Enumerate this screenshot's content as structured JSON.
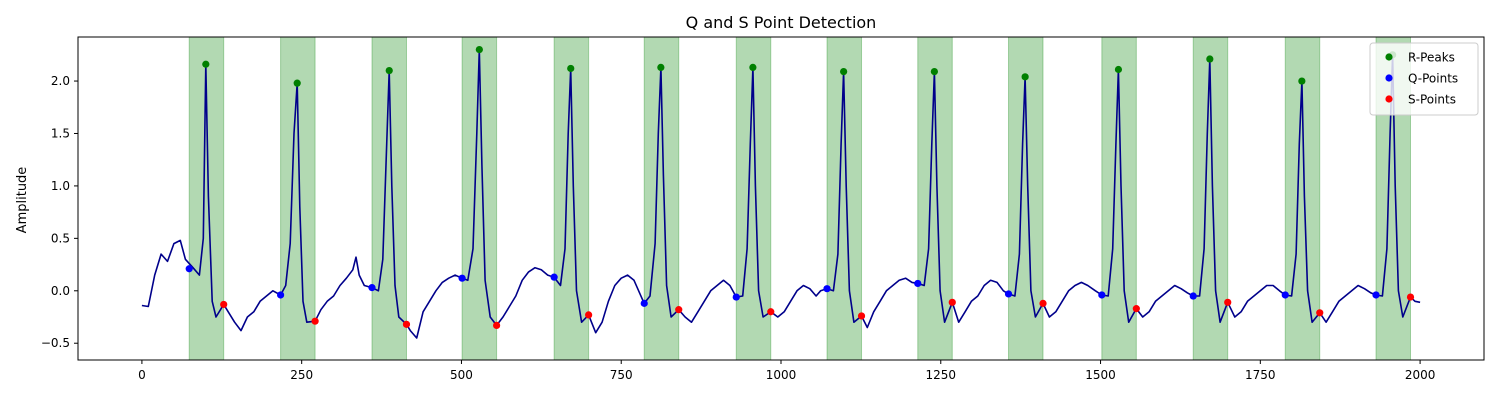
{
  "chart_data": {
    "type": "line",
    "title": "Q and S Point Detection",
    "xlabel": "",
    "ylabel": "Amplitude",
    "xlim": [
      -100,
      2100
    ],
    "ylim": [
      -0.66,
      2.42
    ],
    "x_ticks": [
      0,
      250,
      500,
      750,
      1000,
      1250,
      1500,
      1750,
      2000
    ],
    "y_ticks": [
      -0.5,
      0.0,
      0.5,
      1.0,
      1.5,
      2.0
    ],
    "x_tick_labels": [
      "0",
      "250",
      "500",
      "750",
      "1000",
      "1250",
      "1500",
      "1750",
      "2000"
    ],
    "y_tick_labels": [
      "−0.5",
      "0.0",
      "0.5",
      "1.0",
      "1.5",
      "2.0"
    ],
    "grid": false,
    "legend_position": "top-right",
    "colors": {
      "signal": "#00008b",
      "r_peaks": "#008000",
      "q_points": "#0000ff",
      "s_points": "#ff0000",
      "qrs_region": "#008000"
    },
    "legend": [
      {
        "label": "R-Peaks",
        "color": "#008000"
      },
      {
        "label": "Q-Points",
        "color": "#0000ff"
      },
      {
        "label": "S-Points",
        "color": "#ff0000"
      }
    ],
    "qrs_regions": [
      [
        74,
        128
      ],
      [
        217,
        271
      ],
      [
        360,
        414
      ],
      [
        501,
        555
      ],
      [
        645,
        699
      ],
      [
        786,
        840
      ],
      [
        930,
        984
      ],
      [
        1072,
        1126
      ],
      [
        1214,
        1268
      ],
      [
        1356,
        1410
      ],
      [
        1502,
        1556
      ],
      [
        1645,
        1699
      ],
      [
        1789,
        1843
      ],
      [
        1931,
        1985
      ]
    ],
    "series": [
      {
        "name": "R-Peaks",
        "type": "scatter",
        "x": [
          100,
          243,
          387,
          528,
          671,
          812,
          956,
          1098,
          1240,
          1382,
          1528,
          1671,
          1815,
          1957
        ],
        "y": [
          2.16,
          1.98,
          2.1,
          2.3,
          2.12,
          2.13,
          2.13,
          2.09,
          2.09,
          2.04,
          2.11,
          2.21,
          2.0,
          2.25
        ]
      },
      {
        "name": "Q-Points",
        "type": "scatter",
        "x": [
          74,
          217,
          360,
          501,
          645,
          786,
          930,
          1072,
          1214,
          1356,
          1502,
          1645,
          1789,
          1931
        ],
        "y": [
          0.21,
          -0.04,
          0.03,
          0.12,
          0.13,
          -0.12,
          -0.06,
          0.02,
          0.07,
          -0.03,
          -0.04,
          -0.05,
          -0.04,
          -0.04
        ]
      },
      {
        "name": "S-Points",
        "type": "scatter",
        "x": [
          128,
          271,
          414,
          555,
          699,
          840,
          984,
          1126,
          1268,
          1410,
          1556,
          1699,
          1843,
          1985
        ],
        "y": [
          -0.13,
          -0.29,
          -0.32,
          -0.33,
          -0.23,
          -0.18,
          -0.2,
          -0.24,
          -0.11,
          -0.12,
          -0.17,
          -0.11,
          -0.21,
          -0.06
        ]
      }
    ],
    "signal_baseline": {
      "x": [
        0,
        10,
        20,
        30,
        40,
        50,
        60,
        68,
        80,
        90,
        96,
        100,
        104,
        110,
        116,
        128,
        135,
        145,
        155,
        165,
        175,
        185,
        195,
        205,
        217,
        225,
        232,
        238,
        243,
        247,
        252,
        258,
        271,
        280,
        290,
        300,
        310,
        320,
        330,
        335,
        340,
        348,
        360,
        370,
        377,
        383,
        387,
        391,
        396,
        402,
        414,
        420,
        430,
        440,
        450,
        460,
        470,
        480,
        490,
        501,
        510,
        518,
        524,
        528,
        532,
        537,
        545,
        555,
        565,
        575,
        585,
        595,
        605,
        615,
        625,
        635,
        645,
        655,
        662,
        667,
        671,
        675,
        680,
        688,
        699,
        710,
        720,
        730,
        740,
        750,
        760,
        770,
        786,
        795,
        803,
        808,
        812,
        816,
        821,
        828,
        840,
        850,
        860,
        870,
        880,
        890,
        900,
        910,
        920,
        930,
        940,
        947,
        952,
        956,
        960,
        965,
        972,
        984,
        995,
        1005,
        1015,
        1025,
        1035,
        1045,
        1055,
        1062,
        1072,
        1082,
        1089,
        1094,
        1098,
        1102,
        1107,
        1114,
        1126,
        1135,
        1145,
        1155,
        1165,
        1175,
        1185,
        1195,
        1205,
        1214,
        1224,
        1231,
        1236,
        1240,
        1244,
        1249,
        1256,
        1268,
        1278,
        1288,
        1298,
        1308,
        1318,
        1328,
        1338,
        1348,
        1356,
        1366,
        1373,
        1378,
        1382,
        1386,
        1391,
        1398,
        1410,
        1420,
        1430,
        1440,
        1450,
        1460,
        1470,
        1480,
        1492,
        1502,
        1512,
        1519,
        1524,
        1528,
        1532,
        1537,
        1544,
        1556,
        1566,
        1576,
        1586,
        1596,
        1606,
        1616,
        1626,
        1636,
        1645,
        1655,
        1662,
        1667,
        1671,
        1675,
        1680,
        1687,
        1699,
        1710,
        1720,
        1730,
        1740,
        1750,
        1760,
        1770,
        1780,
        1789,
        1799,
        1806,
        1811,
        1815,
        1819,
        1824,
        1831,
        1843,
        1853,
        1863,
        1873,
        1883,
        1893,
        1903,
        1913,
        1923,
        1931,
        1941,
        1948,
        1953,
        1957,
        1961,
        1966,
        1973,
        1985,
        1992,
        2000
      ],
      "y": [
        -0.14,
        -0.15,
        0.15,
        0.35,
        0.28,
        0.45,
        0.48,
        0.3,
        0.22,
        0.15,
        0.5,
        2.16,
        0.9,
        -0.1,
        -0.25,
        -0.13,
        -0.2,
        -0.3,
        -0.38,
        -0.25,
        -0.2,
        -0.1,
        -0.05,
        0.0,
        -0.04,
        0.05,
        0.45,
        1.5,
        1.98,
        0.8,
        -0.1,
        -0.3,
        -0.29,
        -0.18,
        -0.1,
        -0.05,
        0.05,
        0.12,
        0.2,
        0.32,
        0.15,
        0.05,
        0.03,
        0.0,
        0.3,
        1.4,
        2.1,
        1.0,
        0.05,
        -0.25,
        -0.32,
        -0.38,
        -0.45,
        -0.2,
        -0.1,
        0.0,
        0.08,
        0.12,
        0.15,
        0.12,
        0.1,
        0.4,
        1.5,
        2.3,
        1.2,
        0.1,
        -0.25,
        -0.33,
        -0.25,
        -0.15,
        -0.05,
        0.1,
        0.18,
        0.22,
        0.2,
        0.15,
        0.13,
        0.05,
        0.4,
        1.5,
        2.12,
        1.0,
        0.0,
        -0.3,
        -0.23,
        -0.4,
        -0.3,
        -0.1,
        0.05,
        0.12,
        0.15,
        0.1,
        -0.12,
        -0.05,
        0.45,
        1.5,
        2.13,
        1.1,
        0.05,
        -0.25,
        -0.18,
        -0.25,
        -0.3,
        -0.2,
        -0.1,
        0.0,
        0.05,
        0.1,
        0.05,
        -0.06,
        -0.05,
        0.4,
        1.4,
        2.13,
        1.0,
        0.0,
        -0.25,
        -0.2,
        -0.25,
        -0.2,
        -0.1,
        0.0,
        0.05,
        0.02,
        -0.05,
        0.0,
        0.02,
        0.0,
        0.35,
        1.4,
        2.09,
        1.0,
        0.0,
        -0.3,
        -0.24,
        -0.35,
        -0.2,
        -0.1,
        0.0,
        0.05,
        0.1,
        0.12,
        0.08,
        0.07,
        0.05,
        0.4,
        1.4,
        2.09,
        1.0,
        0.0,
        -0.3,
        -0.11,
        -0.3,
        -0.2,
        -0.1,
        -0.05,
        0.05,
        0.1,
        0.08,
        0.0,
        -0.03,
        -0.05,
        0.35,
        1.4,
        2.04,
        1.0,
        0.0,
        -0.25,
        -0.12,
        -0.25,
        -0.2,
        -0.1,
        0.0,
        0.05,
        0.08,
        0.05,
        0.0,
        -0.04,
        -0.05,
        0.4,
        1.4,
        2.11,
        1.0,
        0.0,
        -0.3,
        -0.17,
        -0.25,
        -0.2,
        -0.1,
        -0.05,
        0.0,
        0.05,
        0.02,
        -0.02,
        -0.05,
        -0.05,
        0.4,
        1.5,
        2.21,
        1.0,
        0.0,
        -0.3,
        -0.11,
        -0.25,
        -0.2,
        -0.1,
        -0.05,
        0.0,
        0.05,
        0.05,
        0.0,
        -0.04,
        -0.05,
        0.35,
        1.4,
        2.0,
        0.9,
        0.0,
        -0.3,
        -0.21,
        -0.3,
        -0.2,
        -0.1,
        -0.05,
        0.0,
        0.05,
        0.02,
        -0.02,
        -0.04,
        -0.05,
        0.4,
        1.5,
        2.25,
        1.0,
        0.0,
        -0.25,
        -0.06,
        -0.1,
        -0.11
      ]
    }
  }
}
